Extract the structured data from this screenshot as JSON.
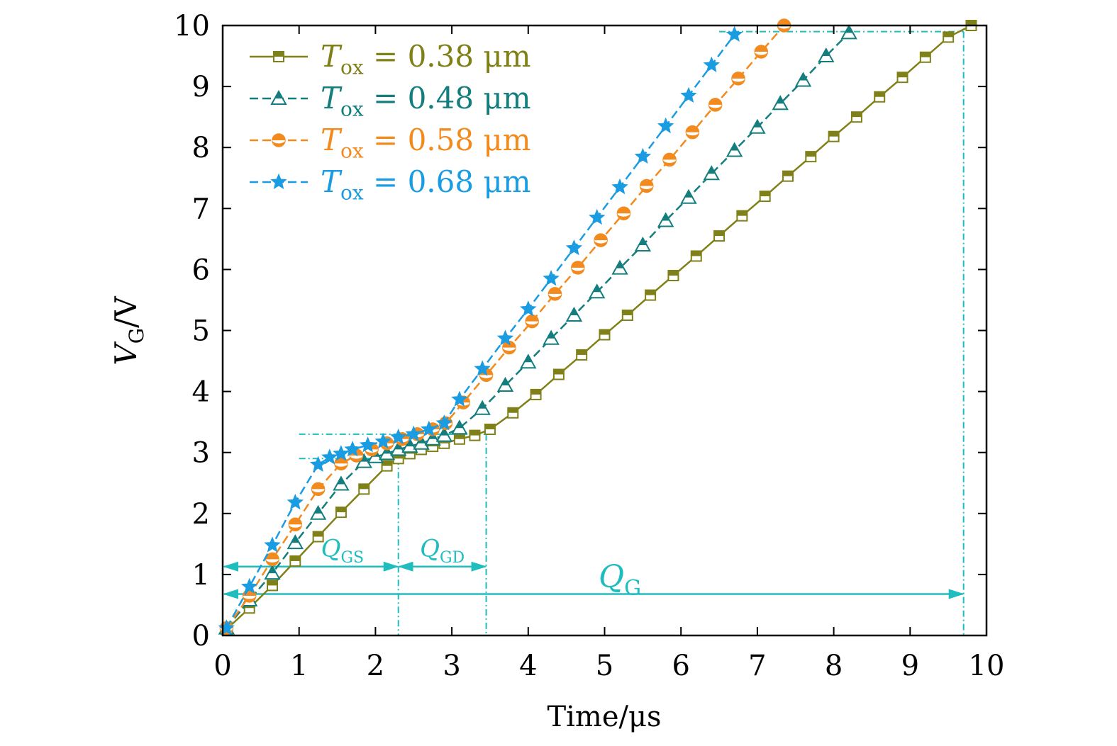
{
  "chart_data": {
    "type": "line",
    "xlabel": "Time/μs",
    "ylabel": {
      "main": "V",
      "sub": "G",
      "unit": "/V"
    },
    "xlim": [
      0,
      10
    ],
    "ylim": [
      0,
      10
    ],
    "xticks": [
      "0",
      "1",
      "2",
      "3",
      "4",
      "5",
      "6",
      "7",
      "8",
      "9",
      "10"
    ],
    "yticks": [
      "0",
      "1",
      "2",
      "3",
      "4",
      "5",
      "6",
      "7",
      "8",
      "9",
      "10"
    ],
    "grid": false,
    "legend_position": "top-left",
    "series": [
      {
        "name": "T_ox = 0.38 μm",
        "legend": {
          "main": "T",
          "sub": "ox",
          "rest": " = 0.38 μm"
        },
        "color": "#808018",
        "marker": "square",
        "dashed": false,
        "x": [
          0.05,
          0.35,
          0.65,
          0.95,
          1.25,
          1.55,
          1.85,
          2.15,
          2.3,
          2.45,
          2.6,
          2.75,
          2.9,
          3.1,
          3.3,
          3.5,
          3.8,
          4.1,
          4.4,
          4.7,
          5.0,
          5.3,
          5.6,
          5.9,
          6.2,
          6.5,
          6.8,
          7.1,
          7.4,
          7.7,
          8.0,
          8.3,
          8.6,
          8.9,
          9.2,
          9.5,
          9.8
        ],
        "y": [
          0.1,
          0.45,
          0.82,
          1.22,
          1.62,
          2.02,
          2.4,
          2.78,
          2.9,
          2.98,
          3.05,
          3.1,
          3.15,
          3.22,
          3.28,
          3.38,
          3.65,
          3.95,
          4.28,
          4.6,
          4.93,
          5.25,
          5.58,
          5.9,
          6.22,
          6.55,
          6.88,
          7.2,
          7.53,
          7.85,
          8.18,
          8.5,
          8.83,
          9.15,
          9.48,
          9.81,
          10.0
        ]
      },
      {
        "name": "T_ox = 0.48 μm",
        "legend": {
          "main": "T",
          "sub": "ox",
          "rest": " = 0.48 μm"
        },
        "color": "#147e7e",
        "marker": "triangle",
        "dashed": true,
        "x": [
          0.05,
          0.35,
          0.65,
          0.95,
          1.25,
          1.55,
          1.85,
          2.0,
          2.15,
          2.3,
          2.45,
          2.6,
          2.75,
          2.9,
          3.1,
          3.4,
          3.7,
          4.0,
          4.3,
          4.6,
          4.9,
          5.2,
          5.5,
          5.8,
          6.1,
          6.4,
          6.7,
          7.0,
          7.3,
          7.6,
          7.9,
          8.2
        ],
        "y": [
          0.12,
          0.58,
          1.02,
          1.52,
          2.0,
          2.48,
          2.85,
          2.93,
          2.98,
          3.05,
          3.1,
          3.15,
          3.22,
          3.28,
          3.4,
          3.72,
          4.1,
          4.48,
          4.87,
          5.25,
          5.63,
          6.02,
          6.4,
          6.8,
          7.18,
          7.57,
          7.95,
          8.33,
          8.72,
          9.1,
          9.5,
          9.88
        ]
      },
      {
        "name": "T_ox = 0.58 μm",
        "legend": {
          "main": "T",
          "sub": "ox",
          "rest": " = 0.58 μm"
        },
        "color": "#f28a1d",
        "marker": "circle",
        "dashed": true,
        "x": [
          0.05,
          0.35,
          0.65,
          0.95,
          1.25,
          1.55,
          1.75,
          1.95,
          2.15,
          2.35,
          2.55,
          2.75,
          2.92,
          3.15,
          3.45,
          3.75,
          4.05,
          4.35,
          4.65,
          4.95,
          5.25,
          5.55,
          5.85,
          6.15,
          6.45,
          6.75,
          7.05,
          7.35
        ],
        "y": [
          0.12,
          0.65,
          1.25,
          1.82,
          2.4,
          2.82,
          2.95,
          3.05,
          3.15,
          3.22,
          3.3,
          3.38,
          3.48,
          3.82,
          4.27,
          4.72,
          5.15,
          5.6,
          6.03,
          6.48,
          6.92,
          7.37,
          7.8,
          8.25,
          8.7,
          9.13,
          9.57,
          10.0
        ]
      },
      {
        "name": "T_ox = 0.68 μm",
        "legend": {
          "main": "T",
          "sub": "ox",
          "rest": " = 0.68 μm"
        },
        "color": "#1a9ce2",
        "marker": "star",
        "dashed": true,
        "x": [
          0.05,
          0.35,
          0.65,
          0.95,
          1.25,
          1.4,
          1.55,
          1.7,
          1.9,
          2.1,
          2.3,
          2.5,
          2.7,
          2.9,
          3.1,
          3.4,
          3.7,
          4.0,
          4.3,
          4.6,
          4.9,
          5.2,
          5.5,
          5.8,
          6.1,
          6.4,
          6.7
        ],
        "y": [
          0.12,
          0.8,
          1.48,
          2.18,
          2.8,
          2.92,
          2.98,
          3.05,
          3.12,
          3.18,
          3.25,
          3.3,
          3.38,
          3.48,
          3.87,
          4.37,
          4.87,
          5.35,
          5.85,
          6.35,
          6.85,
          7.35,
          7.85,
          8.35,
          8.85,
          9.35,
          9.85
        ]
      }
    ],
    "annotations": {
      "color": "#1fbdbd",
      "q_gs": {
        "main": "Q",
        "sub": "GS"
      },
      "q_gd": {
        "main": "Q",
        "sub": "GD"
      },
      "q_g": {
        "main": "Q",
        "sub": "G"
      },
      "t_gs_end": 2.3,
      "t_gd_end": 3.45,
      "t_g_end": 9.7,
      "v_plateau_low": 2.9,
      "v_plateau_high": 3.3,
      "v_max": 9.9,
      "v_arrow_upper": 1.13,
      "v_arrow_lower": 0.68
    }
  }
}
